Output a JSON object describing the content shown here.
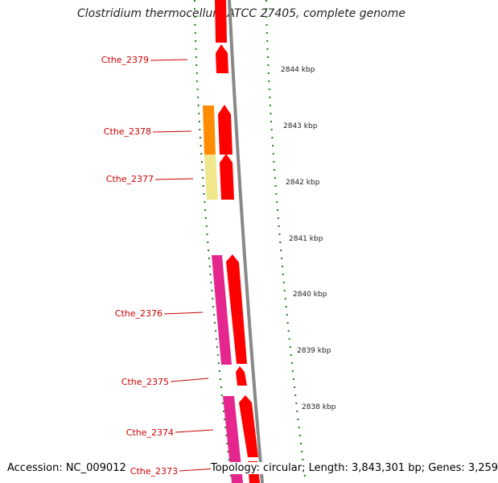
{
  "title": "Clostridium thermocellum ATCC 27405, complete genome",
  "footer": {
    "accession": "Accession: NC_009012",
    "topology": "Topology: circular; Length: 3,843,301 bp; Genes: 3,259"
  },
  "colors": {
    "gene_label": "#cc0000",
    "leader_line": "#cc0000",
    "backbone": "#888888",
    "tick": "#1a7f1a",
    "cds_red": "#ff0000",
    "cds_orange": "#ff8c00",
    "cds_khaki": "#f0e68c",
    "cds_magenta": "#e6268f"
  },
  "gene_labels": [
    "Cthe_2379",
    "Cthe_2378",
    "Cthe_2377",
    "Cthe_2376",
    "Cthe_2375",
    "Cthe_2374",
    "Cthe_2373"
  ],
  "scale_labels": [
    "2844 kbp",
    "2843 kbp",
    "2842 kbp",
    "2841 kbp",
    "2840 kbp",
    "2839 kbp",
    "2838 kbp"
  ]
}
